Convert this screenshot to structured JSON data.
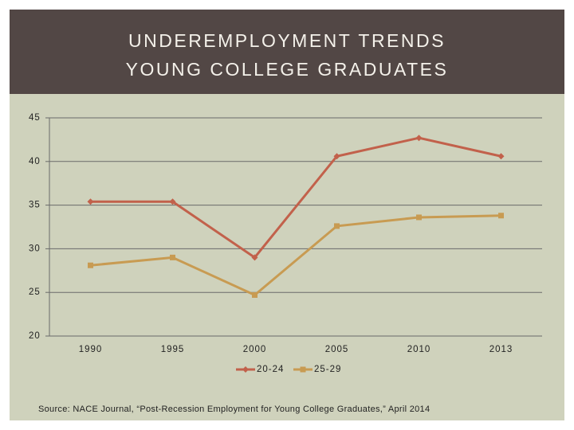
{
  "chart_data": {
    "type": "line",
    "title": [
      "UNDEREMPLOYMENT TRENDS",
      "YOUNG COLLEGE GRADUATES"
    ],
    "categories": [
      "1990",
      "1995",
      "2000",
      "2005",
      "2010",
      "2013"
    ],
    "series": [
      {
        "name": "20-24",
        "color": "#c2614b",
        "marker": "diamond",
        "values": [
          35.4,
          35.4,
          29.0,
          40.6,
          42.7,
          40.6
        ]
      },
      {
        "name": "25-29",
        "color": "#c89b52",
        "marker": "square",
        "values": [
          28.1,
          29.0,
          24.7,
          32.6,
          33.6,
          33.8
        ]
      }
    ],
    "ylim": [
      20,
      45
    ],
    "yticks": [
      20,
      25,
      30,
      35,
      40,
      45
    ],
    "grid": true,
    "legend": "bottom",
    "source": "Source: NACE Journal, “Post-Recession Employment for Young College Graduates,” April 2014"
  }
}
